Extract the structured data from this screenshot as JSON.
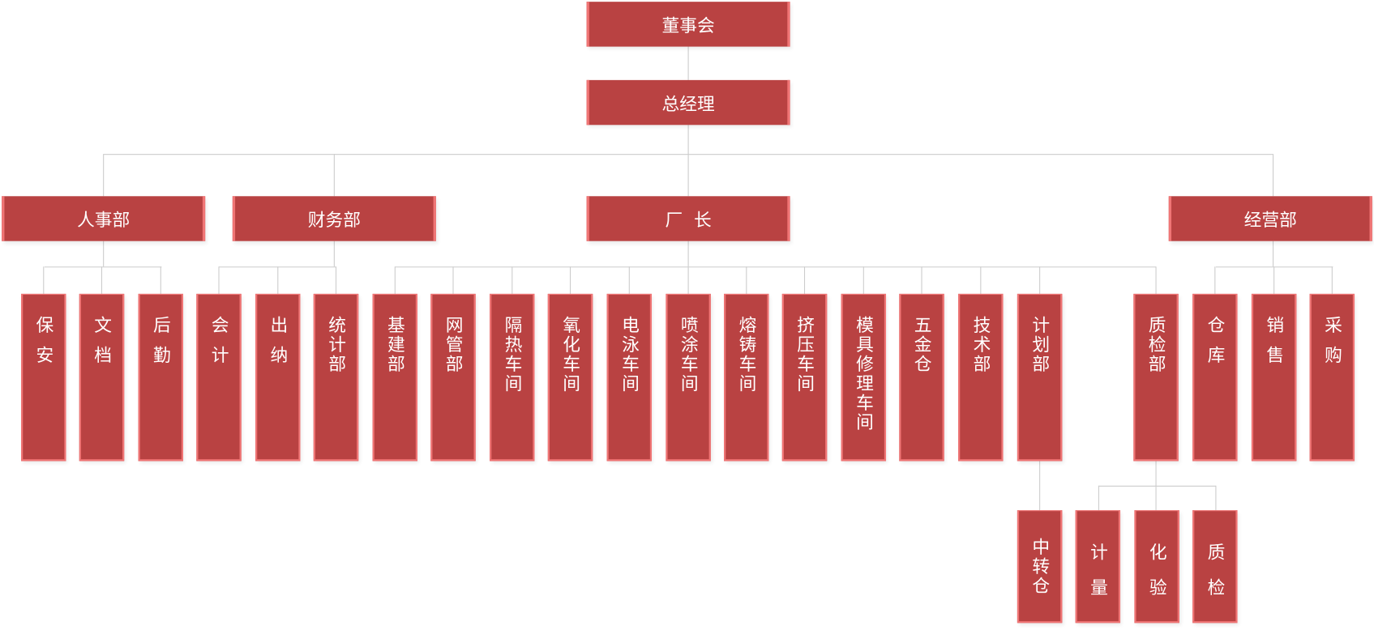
{
  "colors": {
    "box_fill": "#b94242",
    "box_border": "#f07575",
    "connector": "#cccccc",
    "text": "#ffffff"
  },
  "board": "董事会",
  "general_manager": "总经理",
  "departments": {
    "hr": "人事部",
    "finance": "财务部",
    "factory_director": "厂  长",
    "operations": "经营部"
  },
  "hr_units": [
    "保安",
    "文档",
    "后勤"
  ],
  "finance_units": [
    "会计",
    "出纳",
    "统计部"
  ],
  "factory_units": [
    "基建部",
    "网管部",
    "隔热车间",
    "氧化车间",
    "电泳车间",
    "喷涂车间",
    "熔铸车间",
    "挤压车间",
    "模具修理车间",
    "五金仓",
    "技术部",
    "计划部",
    "质检部"
  ],
  "operations_units": [
    "仓库",
    "销售",
    "采购"
  ],
  "planning_units": [
    "中转仓"
  ],
  "qc_units": [
    "计量",
    "化验",
    "质检"
  ]
}
